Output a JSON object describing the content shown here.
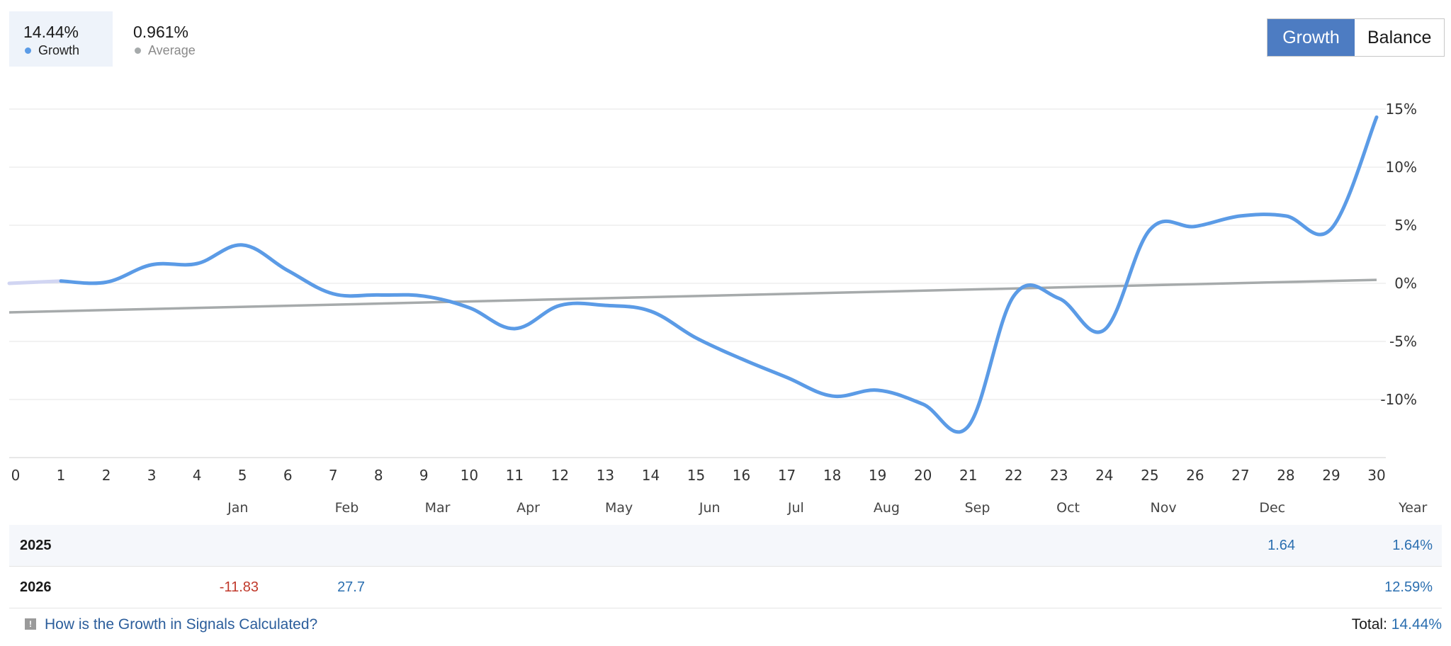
{
  "header": {
    "growth_stat": {
      "value": "14.44%",
      "label": "Growth"
    },
    "average_stat": {
      "value": "0.961%",
      "label": "Average"
    }
  },
  "toggle": {
    "growth_label": "Growth",
    "balance_label": "Balance"
  },
  "colors": {
    "growth": "#5b9be6",
    "average": "#a6aaab",
    "start_segment": "#d1d5f2",
    "accent": "#4d7cc2",
    "negative": "#c0392b",
    "positive": "#2b6fb0"
  },
  "chart_data": {
    "type": "line",
    "title": "",
    "xlabel": "",
    "ylabel": "",
    "x_ticks": [
      "0",
      "1",
      "2",
      "3",
      "4",
      "5",
      "6",
      "7",
      "8",
      "9",
      "10",
      "11",
      "12",
      "13",
      "14",
      "15",
      "16",
      "17",
      "18",
      "19",
      "20",
      "21",
      "22",
      "23",
      "24",
      "25",
      "26",
      "27",
      "28",
      "29",
      "30"
    ],
    "y_ticks": [
      "15%",
      "10%",
      "5%",
      "0%",
      "-5%",
      "-10%"
    ],
    "y_tick_values": [
      15,
      10,
      5,
      0,
      -5,
      -10
    ],
    "ylim": [
      -15,
      15
    ],
    "xlim": [
      0,
      30
    ],
    "months": [
      {
        "label": "Jan",
        "x": 4.9
      },
      {
        "label": "Feb",
        "x": 7.3
      },
      {
        "label": "Mar",
        "x": 9.3
      },
      {
        "label": "Apr",
        "x": 11.3
      },
      {
        "label": "May",
        "x": 13.3
      },
      {
        "label": "Jun",
        "x": 15.3
      },
      {
        "label": "Jul",
        "x": 17.2
      },
      {
        "label": "Aug",
        "x": 19.2
      },
      {
        "label": "Sep",
        "x": 21.2
      },
      {
        "label": "Oct",
        "x": 23.2
      },
      {
        "label": "Nov",
        "x": 25.3
      },
      {
        "label": "Dec",
        "x": 27.7
      },
      {
        "label": "Year",
        "x": 30.8
      }
    ],
    "grid": true,
    "series": [
      {
        "name": "Growth",
        "x": [
          0,
          1,
          2,
          3,
          4,
          5,
          6,
          7,
          8,
          9,
          10,
          11,
          12,
          13,
          14,
          15,
          16,
          17,
          18,
          19,
          20,
          21,
          22,
          23,
          24,
          25,
          26,
          27,
          28,
          29,
          30
        ],
        "values": [
          0.0,
          0.2,
          0.1,
          1.6,
          1.7,
          3.3,
          1.1,
          -0.9,
          -1.0,
          -1.1,
          -2.1,
          -3.9,
          -1.9,
          -1.9,
          -2.4,
          -4.7,
          -6.5,
          -8.1,
          -9.7,
          -9.2,
          -10.4,
          -12.3,
          -1.1,
          -1.3,
          -4.0,
          4.6,
          4.9,
          5.8,
          5.8,
          4.7,
          14.3
        ]
      },
      {
        "name": "Average",
        "x": [
          0,
          30
        ],
        "values": [
          -2.5,
          0.3
        ]
      }
    ]
  },
  "table": {
    "rows": [
      {
        "year": "2025",
        "cells": [
          {
            "text": "1.64",
            "col": 11,
            "sign": "pos"
          }
        ],
        "year_total": "1.64%"
      },
      {
        "year": "2026",
        "cells": [
          {
            "text": "-11.83",
            "col": 0,
            "sign": "neg"
          },
          {
            "text": "27.7",
            "col": 1,
            "sign": "pos"
          }
        ],
        "year_total": "12.59%"
      }
    ]
  },
  "footer": {
    "help_link": "How is the Growth in Signals Calculated?",
    "total_label": "Total:",
    "total_value": "14.44%"
  }
}
